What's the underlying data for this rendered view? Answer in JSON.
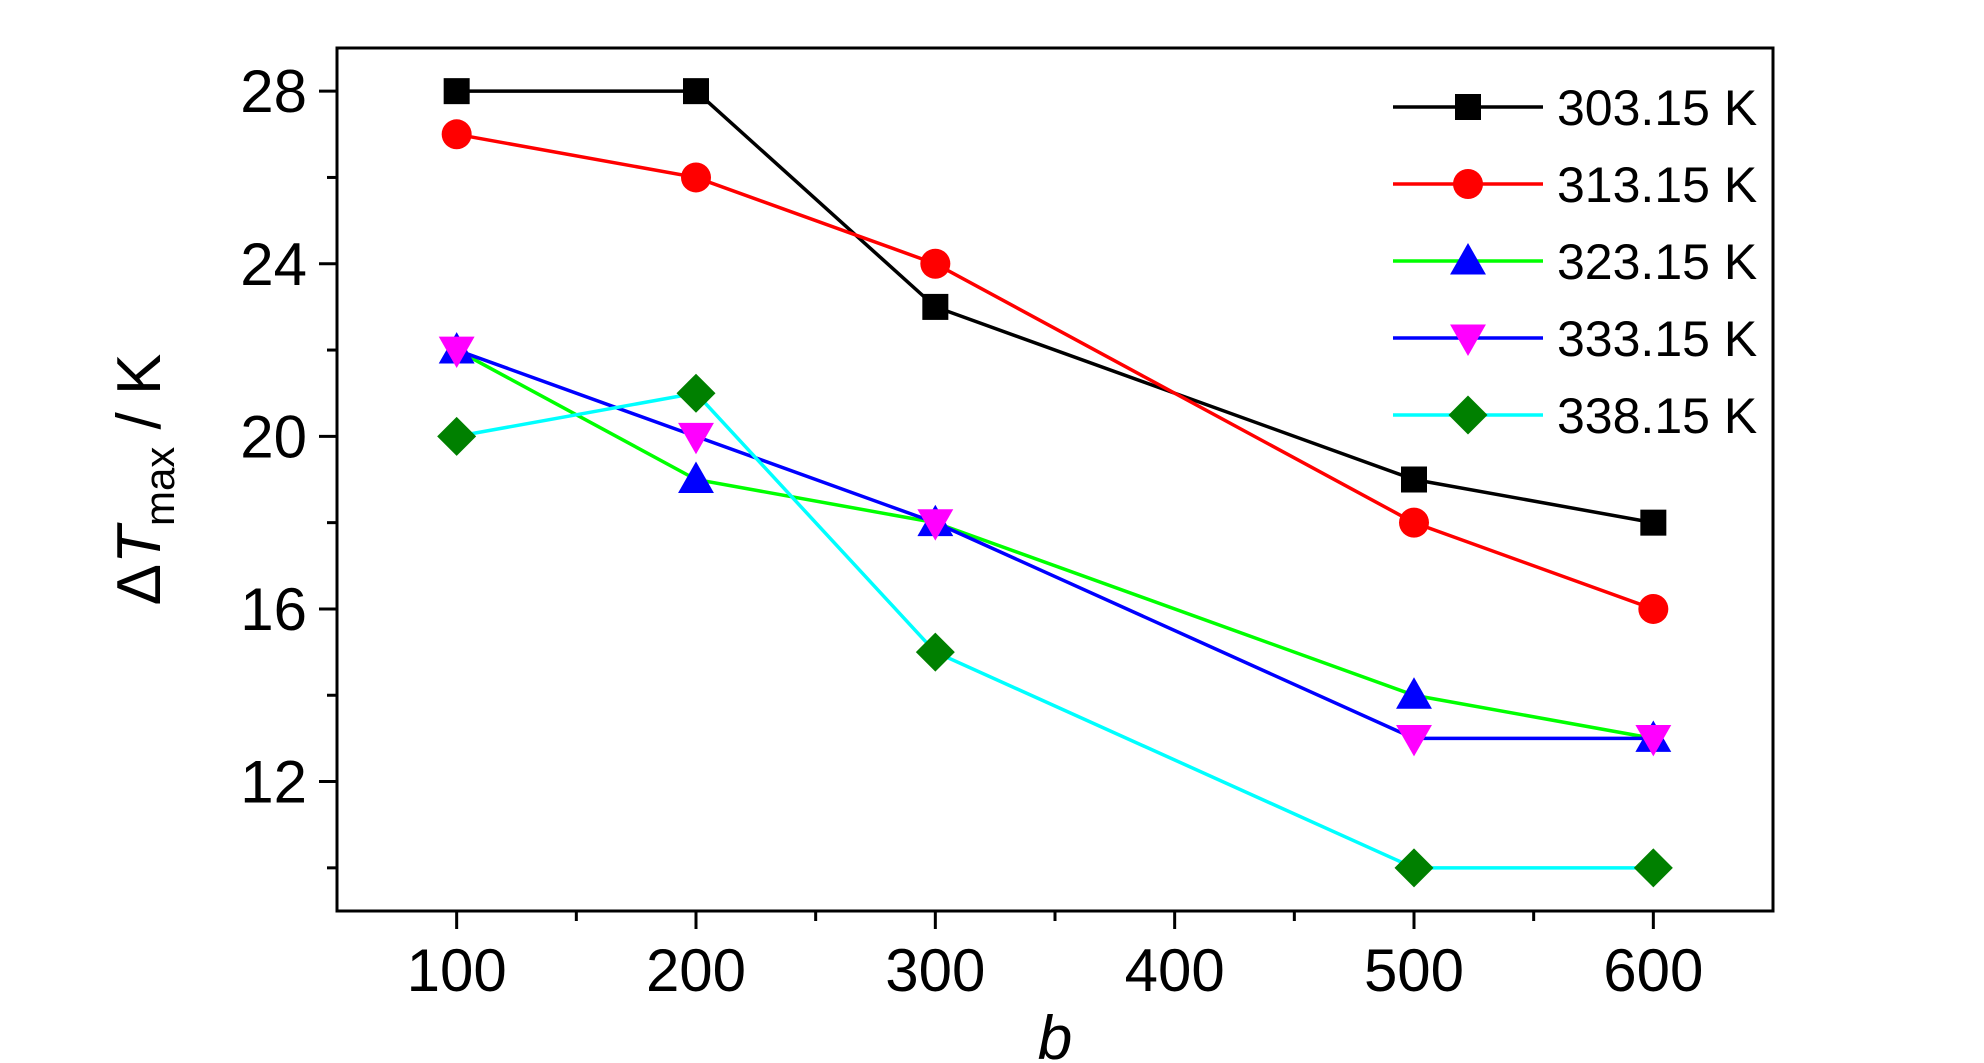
{
  "chart_data": {
    "type": "line",
    "xlabel": "b",
    "ylabel_symbol": "Δ",
    "ylabel_var": "T",
    "ylabel_sub": "max",
    "ylabel_unit": " / K",
    "xlim": [
      50,
      650
    ],
    "ylim": [
      9,
      29
    ],
    "x_ticks": [
      100,
      200,
      300,
      400,
      500,
      600
    ],
    "x_minor_ticks": [
      150,
      250,
      350,
      450,
      550
    ],
    "y_ticks": [
      12,
      16,
      20,
      24,
      28
    ],
    "y_minor_ticks": [
      10,
      14,
      18,
      22,
      26
    ],
    "grid": false,
    "legend_position": "top-right",
    "series": [
      {
        "name": "303.15 K",
        "line_color": "#000000",
        "marker": "square",
        "marker_color": "#000000",
        "x": [
          100,
          200,
          300,
          500,
          600
        ],
        "y": [
          28,
          28,
          23,
          19,
          18
        ]
      },
      {
        "name": "313.15 K",
        "line_color": "#ff0000",
        "marker": "circle",
        "marker_color": "#ff0000",
        "x": [
          100,
          200,
          300,
          500,
          600
        ],
        "y": [
          27,
          26,
          24,
          18,
          16
        ]
      },
      {
        "name": "323.15 K",
        "line_color": "#00ff00",
        "marker": "triangle-up",
        "marker_color": "#0000ff",
        "x": [
          100,
          200,
          300,
          500,
          600
        ],
        "y": [
          22,
          19,
          18,
          14,
          13
        ]
      },
      {
        "name": "333.15 K",
        "line_color": "#0000ff",
        "marker": "triangle-down",
        "marker_color": "#ff00ff",
        "x": [
          100,
          200,
          300,
          500,
          600
        ],
        "y": [
          22,
          20,
          18,
          13,
          13
        ]
      },
      {
        "name": "338.15 K",
        "line_color": "#00ffff",
        "marker": "diamond",
        "marker_color": "#008000",
        "x": [
          100,
          200,
          300,
          500,
          600
        ],
        "y": [
          20,
          21,
          15,
          10,
          10
        ]
      }
    ]
  }
}
